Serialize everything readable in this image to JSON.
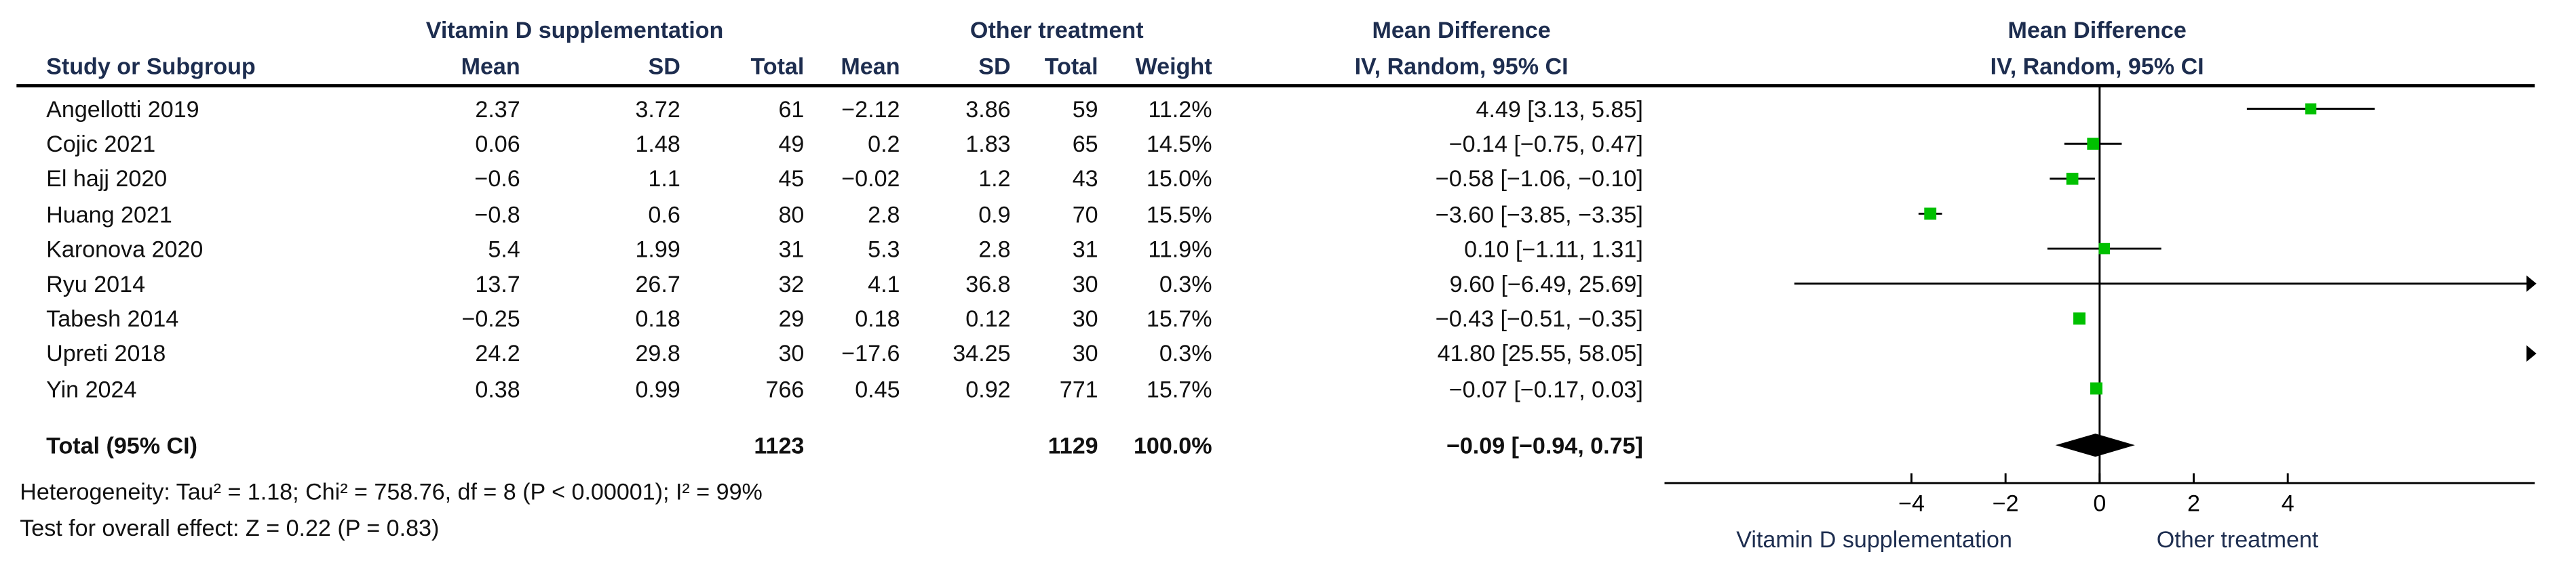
{
  "header": {
    "group1": "Vitamin D supplementation",
    "group2": "Other treatment",
    "effect_title": "Mean Difference",
    "effect_sub": "IV, Random, 95% CI",
    "plot_title": "Mean Difference",
    "plot_sub": "IV, Random, 95% CI",
    "cols": {
      "study": "Study or Subgroup",
      "mean1": "Mean",
      "sd1": "SD",
      "total1": "Total",
      "mean2": "Mean",
      "sd2": "SD",
      "total2": "Total",
      "weight": "Weight"
    }
  },
  "chart_data": {
    "type": "forest",
    "xlim": [
      -9.25,
      9.25
    ],
    "xticks": [
      "−4",
      "−2",
      "0",
      "2",
      "4"
    ],
    "xtick_values": [
      -4,
      -2,
      0,
      2,
      4
    ],
    "xlabel_left": "Vitamin D supplementation",
    "xlabel_right": "Other treatment",
    "marker_color": "#00c000",
    "studies": [
      {
        "name": "Angellotti 2019",
        "mean1": "2.37",
        "sd1": "3.72",
        "total1": "61",
        "mean2": "−2.12",
        "sd2": "3.86",
        "total2": "59",
        "weight": "11.2%",
        "ci_text": "4.49 [3.13, 5.85]",
        "md": 4.49,
        "lo": 3.13,
        "hi": 5.85,
        "w": 11.2
      },
      {
        "name": "Cojic 2021",
        "mean1": "0.06",
        "sd1": "1.48",
        "total1": "49",
        "mean2": "0.2",
        "sd2": "1.83",
        "total2": "65",
        "weight": "14.5%",
        "ci_text": "−0.14 [−0.75, 0.47]",
        "md": -0.14,
        "lo": -0.75,
        "hi": 0.47,
        "w": 14.5
      },
      {
        "name": "El hajj 2020",
        "mean1": "−0.6",
        "sd1": "1.1",
        "total1": "45",
        "mean2": "−0.02",
        "sd2": "1.2",
        "total2": "43",
        "weight": "15.0%",
        "ci_text": "−0.58 [−1.06, −0.10]",
        "md": -0.58,
        "lo": -1.06,
        "hi": -0.1,
        "w": 15.0
      },
      {
        "name": "Huang 2021",
        "mean1": "−0.8",
        "sd1": "0.6",
        "total1": "80",
        "mean2": "2.8",
        "sd2": "0.9",
        "total2": "70",
        "weight": "15.5%",
        "ci_text": "−3.60 [−3.85, −3.35]",
        "md": -3.6,
        "lo": -3.85,
        "hi": -3.35,
        "w": 15.5
      },
      {
        "name": "Karonova 2020",
        "mean1": "5.4",
        "sd1": "1.99",
        "total1": "31",
        "mean2": "5.3",
        "sd2": "2.8",
        "total2": "31",
        "weight": "11.9%",
        "ci_text": "0.10 [−1.11, 1.31]",
        "md": 0.1,
        "lo": -1.11,
        "hi": 1.31,
        "w": 11.9
      },
      {
        "name": "Ryu 2014",
        "mean1": "13.7",
        "sd1": "26.7",
        "total1": "32",
        "mean2": "4.1",
        "sd2": "36.8",
        "total2": "30",
        "weight": "0.3%",
        "ci_text": "9.60 [−6.49, 25.69]",
        "md": 9.6,
        "lo": -6.49,
        "hi": 25.69,
        "w": 0.3
      },
      {
        "name": "Tabesh 2014",
        "mean1": "−0.25",
        "sd1": "0.18",
        "total1": "29",
        "mean2": "0.18",
        "sd2": "0.12",
        "total2": "30",
        "weight": "15.7%",
        "ci_text": "−0.43 [−0.51, −0.35]",
        "md": -0.43,
        "lo": -0.51,
        "hi": -0.35,
        "w": 15.7
      },
      {
        "name": "Upreti 2018",
        "mean1": "24.2",
        "sd1": "29.8",
        "total1": "30",
        "mean2": "−17.6",
        "sd2": "34.25",
        "total2": "30",
        "weight": "0.3%",
        "ci_text": "41.80 [25.55, 58.05]",
        "md": 41.8,
        "lo": 25.55,
        "hi": 58.05,
        "w": 0.3
      },
      {
        "name": "Yin 2024",
        "mean1": "0.38",
        "sd1": "0.99",
        "total1": "766",
        "mean2": "0.45",
        "sd2": "0.92",
        "total2": "771",
        "weight": "15.7%",
        "ci_text": "−0.07 [−0.17, 0.03]",
        "md": -0.07,
        "lo": -0.17,
        "hi": 0.03,
        "w": 15.7
      }
    ],
    "total": {
      "name": "Total (95% CI)",
      "total1": "1123",
      "total2": "1129",
      "weight": "100.0%",
      "ci_text": "−0.09 [−0.94, 0.75]",
      "md": -0.09,
      "lo": -0.94,
      "hi": 0.75
    }
  },
  "footer": {
    "heterogeneity": "Heterogeneity: Tau² = 1.18; Chi² = 758.76, df = 8 (P < 0.00001); I² = 99%",
    "overall": "Test for overall effect: Z = 0.22 (P = 0.83)"
  }
}
